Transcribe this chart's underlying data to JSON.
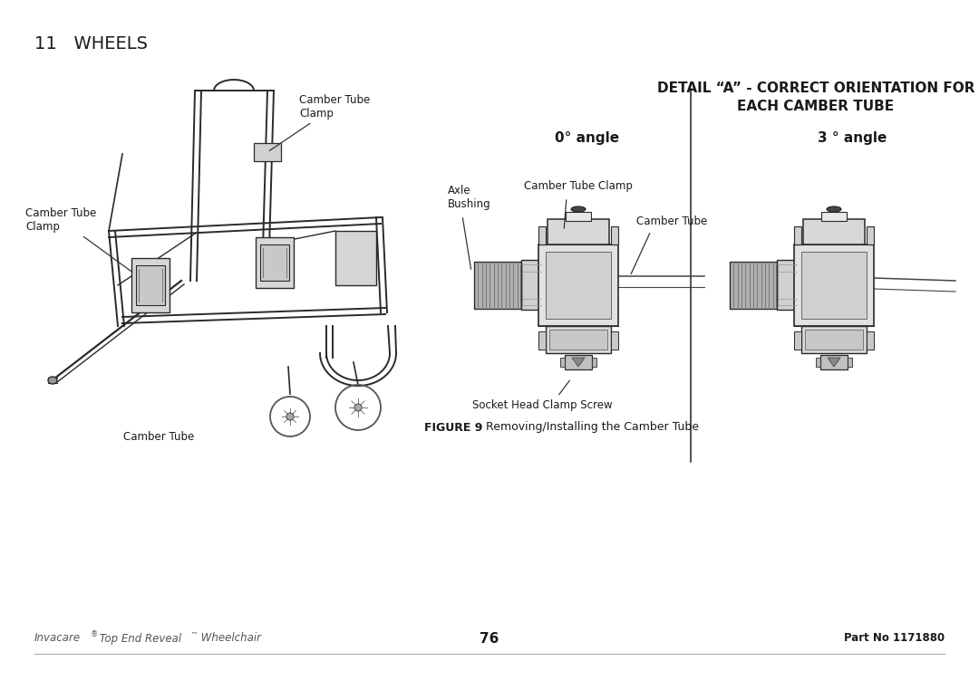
{
  "title_section": "11   WHEELS",
  "detail_title_line1": "DETAIL “A” - CORRECT ORIENTATION FOR",
  "detail_title_line2": "EACH CAMBER TUBE",
  "angle_left_label": "0° angle",
  "angle_right_label": "3 ° angle",
  "label_axle_bushing": "Axle\nBushing",
  "label_camber_tube_clamp_detail": "Camber Tube Clamp",
  "label_camber_tube_detail": "Camber Tube",
  "label_socket_head": "Socket Head Clamp Screw",
  "label_camber_tube_clamp_top": "Camber Tube\nClamp",
  "label_camber_tube_clamp_left": "Camber Tube\nClamp",
  "label_camber_tube_bottom": "Camber Tube",
  "figure_caption_bold": "FIGURE 9",
  "figure_caption_normal": "   Removing/Installing the Camber Tube",
  "footer_left_italic": "Invacare",
  "footer_left_sup1": "®",
  "footer_left_rest": " Top End Reveal",
  "footer_left_sup2": "™",
  "footer_left_end": " Wheelchair",
  "footer_center": "76",
  "footer_right": "Part No 1171880",
  "bg_color": "#ffffff",
  "text_color": "#1a1a1a",
  "gray_color": "#555555",
  "line_color": "#333333",
  "dark_color": "#1a1a1a"
}
